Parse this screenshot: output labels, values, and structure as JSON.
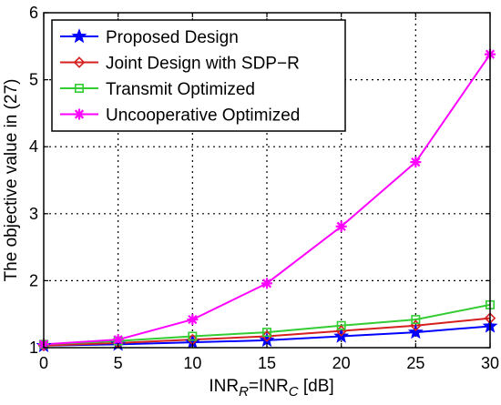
{
  "chart_data": {
    "type": "line",
    "title": "",
    "xlabel": {
      "base": "INR",
      "sub1": "R",
      "mid": "=INR",
      "sub2": "C",
      "unit": " [dB]"
    },
    "ylabel": "The objective value in (27)",
    "x": [
      0,
      5,
      10,
      15,
      20,
      25,
      30
    ],
    "xlim": [
      0,
      30
    ],
    "ylim": [
      1,
      6
    ],
    "xticks": [
      0,
      5,
      10,
      15,
      20,
      25,
      30
    ],
    "yticks": [
      1,
      2,
      3,
      4,
      5,
      6
    ],
    "grid": true,
    "legend_position": "top-left",
    "series": [
      {
        "name": "Proposed Design",
        "color": "#0000ff",
        "marker": "star-icon",
        "values": [
          1.03,
          1.05,
          1.08,
          1.11,
          1.17,
          1.23,
          1.32
        ]
      },
      {
        "name": "Joint Design with SDP−R",
        "color": "#d62020",
        "marker": "diamond-icon",
        "values": [
          1.03,
          1.07,
          1.12,
          1.17,
          1.25,
          1.33,
          1.44
        ]
      },
      {
        "name": "Transmit Optimized",
        "color": "#33cc33",
        "marker": "square-icon",
        "values": [
          1.05,
          1.1,
          1.17,
          1.23,
          1.33,
          1.42,
          1.64
        ]
      },
      {
        "name": "Uncooperative Optimized",
        "color": "#ff00ff",
        "marker": "asterisk-icon",
        "values": [
          1.05,
          1.12,
          1.42,
          1.96,
          2.81,
          3.77,
          5.38
        ]
      }
    ]
  }
}
